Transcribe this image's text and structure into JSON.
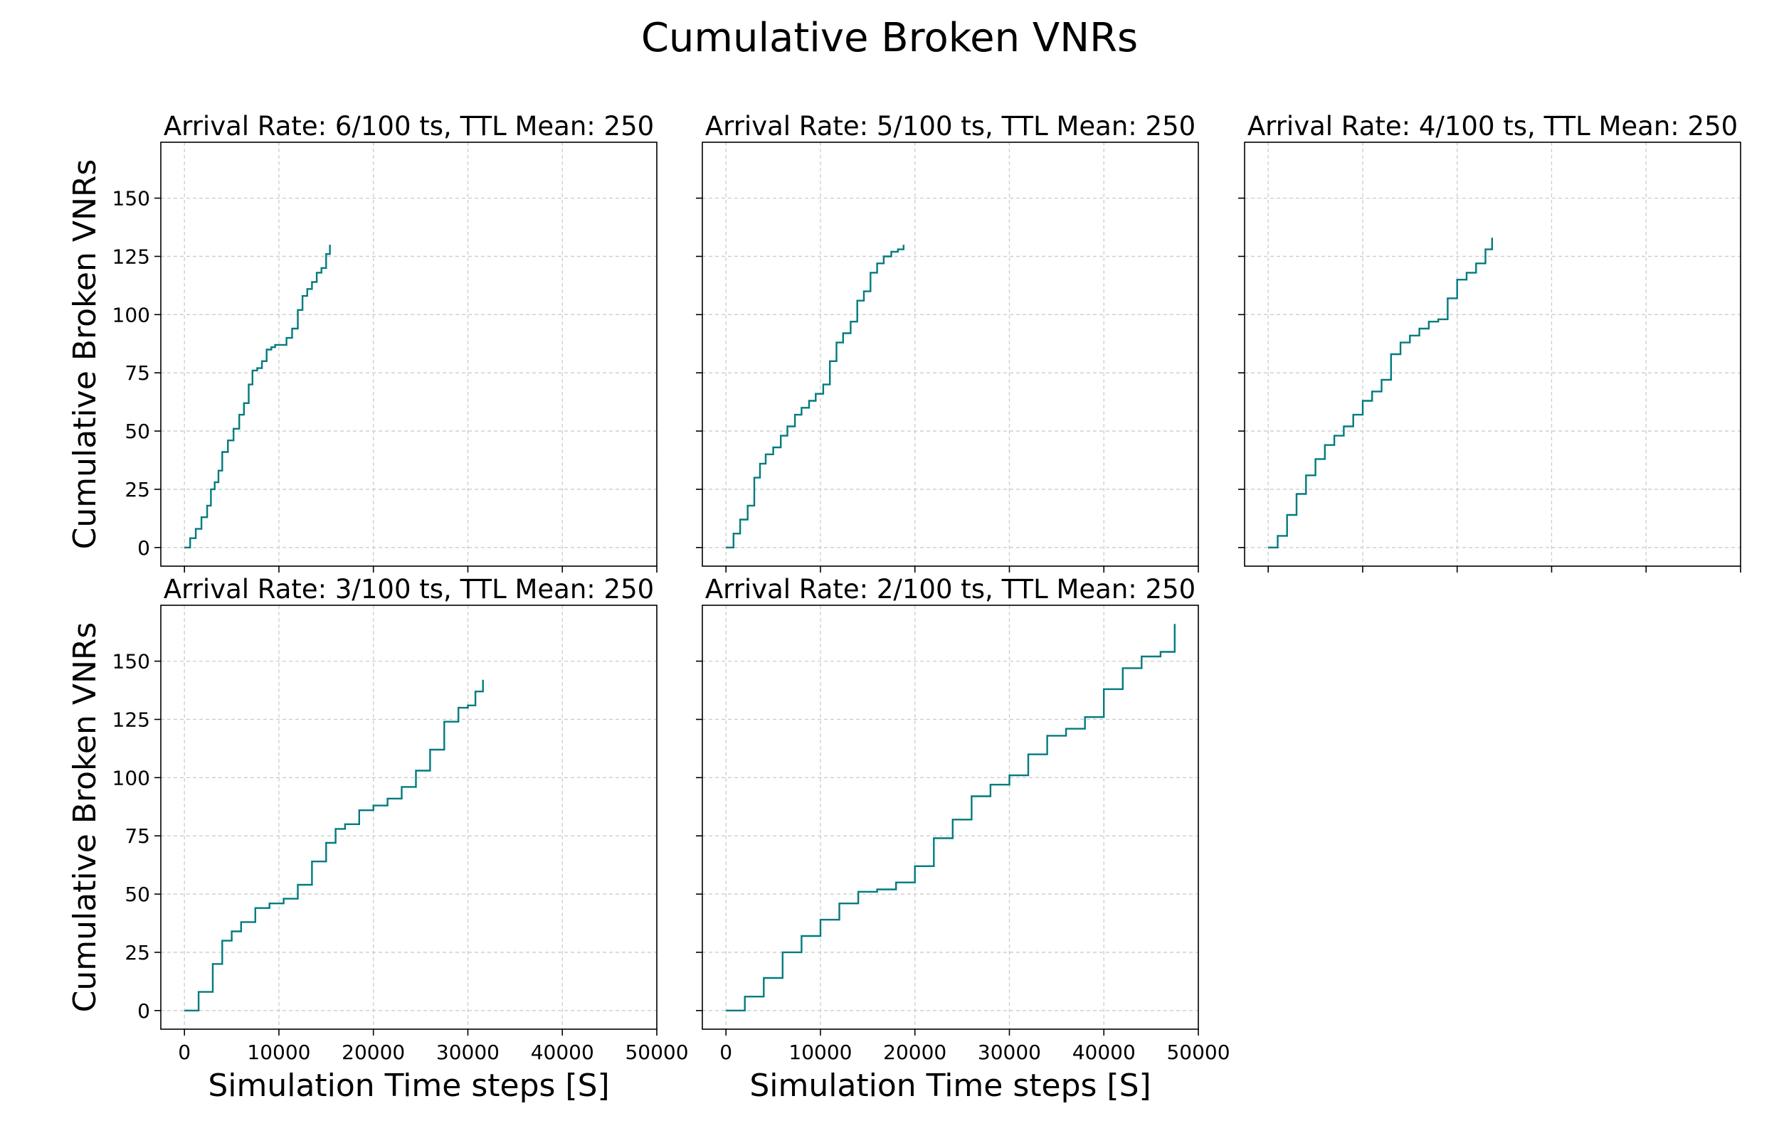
{
  "figure": {
    "title": "Cumulative Broken VNRs",
    "line_color": "#007b7f",
    "grid_color": "#cccccc"
  },
  "chart_data": [
    {
      "type": "line",
      "title": "Arrival Rate: 6/100 ts, TTL Mean: 250",
      "xlabel": "",
      "ylabel": "Cumulative Broken VNRs",
      "xlim": [
        -2500,
        50000
      ],
      "ylim": [
        -8,
        174
      ],
      "xticks": [
        0,
        10000,
        20000,
        30000,
        40000,
        50000
      ],
      "yticks": [
        0,
        25,
        50,
        75,
        100,
        125,
        150
      ],
      "show_xticklabels": false,
      "show_yticklabels": true,
      "grid": true,
      "series": [
        {
          "x": [
            0,
            600,
            1200,
            1800,
            2400,
            2800,
            3200,
            3600,
            4000,
            4600,
            5200,
            5800,
            6300,
            6800,
            7200,
            7700,
            8200,
            8700,
            9200,
            9600,
            10200,
            10800,
            11400,
            12000,
            12500,
            13000,
            13500,
            14000,
            14500,
            15000,
            15400
          ],
          "y": [
            0,
            4,
            8,
            13,
            18,
            25,
            28,
            33,
            41,
            46,
            51,
            57,
            62,
            70,
            76,
            77,
            80,
            85,
            86,
            87,
            87,
            90,
            94,
            102,
            108,
            111,
            114,
            118,
            120,
            126,
            130
          ]
        }
      ]
    },
    {
      "type": "line",
      "title": "Arrival Rate: 5/100 ts, TTL Mean: 250",
      "xlabel": "",
      "ylabel": "",
      "xlim": [
        -2500,
        50000
      ],
      "ylim": [
        -8,
        174
      ],
      "xticks": [
        0,
        10000,
        20000,
        30000,
        40000,
        50000
      ],
      "yticks": [
        0,
        25,
        50,
        75,
        100,
        125,
        150
      ],
      "show_xticklabels": false,
      "show_yticklabels": false,
      "grid": true,
      "series": [
        {
          "x": [
            0,
            800,
            1500,
            2300,
            3000,
            3600,
            4200,
            5000,
            5800,
            6500,
            7300,
            8000,
            8800,
            9500,
            10300,
            11000,
            11700,
            12400,
            13200,
            13900,
            14600,
            15300,
            16000,
            16700,
            17500,
            18200,
            18800
          ],
          "y": [
            0,
            6,
            12,
            18,
            30,
            36,
            40,
            43,
            48,
            52,
            57,
            60,
            63,
            66,
            70,
            80,
            88,
            92,
            97,
            106,
            110,
            118,
            122,
            125,
            127,
            128,
            130
          ]
        }
      ]
    },
    {
      "type": "line",
      "title": "Arrival Rate: 4/100 ts, TTL Mean: 250",
      "xlabel": "",
      "ylabel": "",
      "xlim": [
        -2500,
        50000
      ],
      "ylim": [
        -8,
        174
      ],
      "xticks": [
        0,
        10000,
        20000,
        30000,
        40000,
        50000
      ],
      "yticks": [
        0,
        25,
        50,
        75,
        100,
        125,
        150
      ],
      "show_xticklabels": false,
      "show_yticklabels": false,
      "grid": true,
      "series": [
        {
          "x": [
            0,
            1000,
            2000,
            3000,
            4000,
            5000,
            6000,
            7000,
            8000,
            9000,
            10000,
            11000,
            12000,
            13000,
            14000,
            15000,
            16000,
            17000,
            18000,
            19000,
            20000,
            21000,
            22000,
            23000,
            23700
          ],
          "y": [
            0,
            5,
            14,
            23,
            31,
            38,
            44,
            48,
            52,
            57,
            63,
            67,
            72,
            83,
            88,
            91,
            94,
            97,
            98,
            107,
            115,
            118,
            122,
            128,
            133
          ]
        }
      ]
    },
    {
      "type": "line",
      "title": "Arrival Rate: 3/100 ts, TTL Mean: 250",
      "xlabel": "Simulation Time steps [S]",
      "ylabel": "Cumulative Broken VNRs",
      "xlim": [
        -2500,
        50000
      ],
      "ylim": [
        -8,
        174
      ],
      "xticks": [
        0,
        10000,
        20000,
        30000,
        40000,
        50000
      ],
      "yticks": [
        0,
        25,
        50,
        75,
        100,
        125,
        150
      ],
      "show_xticklabels": true,
      "show_yticklabels": true,
      "grid": true,
      "series": [
        {
          "x": [
            0,
            1500,
            3000,
            4000,
            5000,
            6000,
            7500,
            9000,
            10500,
            12000,
            13500,
            15000,
            16000,
            17000,
            18500,
            20000,
            21500,
            23000,
            24500,
            26000,
            27500,
            29000,
            30000,
            30800,
            31600
          ],
          "y": [
            0,
            8,
            20,
            30,
            34,
            38,
            44,
            46,
            48,
            54,
            64,
            72,
            78,
            80,
            86,
            88,
            91,
            96,
            103,
            112,
            124,
            130,
            131,
            137,
            142
          ]
        }
      ]
    },
    {
      "type": "line",
      "title": "Arrival Rate: 2/100 ts, TTL Mean: 250",
      "xlabel": "Simulation Time steps [S]",
      "ylabel": "",
      "xlim": [
        -2500,
        50000
      ],
      "ylim": [
        -8,
        174
      ],
      "xticks": [
        0,
        10000,
        20000,
        30000,
        40000,
        50000
      ],
      "yticks": [
        0,
        25,
        50,
        75,
        100,
        125,
        150
      ],
      "show_xticklabels": true,
      "show_yticklabels": false,
      "grid": true,
      "series": [
        {
          "x": [
            0,
            2000,
            4000,
            6000,
            8000,
            10000,
            12000,
            14000,
            16000,
            18000,
            20000,
            22000,
            24000,
            26000,
            28000,
            30000,
            32000,
            34000,
            36000,
            38000,
            40000,
            42000,
            44000,
            46000,
            47500
          ],
          "y": [
            0,
            6,
            14,
            25,
            32,
            39,
            46,
            51,
            52,
            55,
            62,
            74,
            82,
            92,
            97,
            101,
            110,
            118,
            121,
            126,
            138,
            147,
            152,
            154,
            166
          ]
        }
      ]
    }
  ]
}
